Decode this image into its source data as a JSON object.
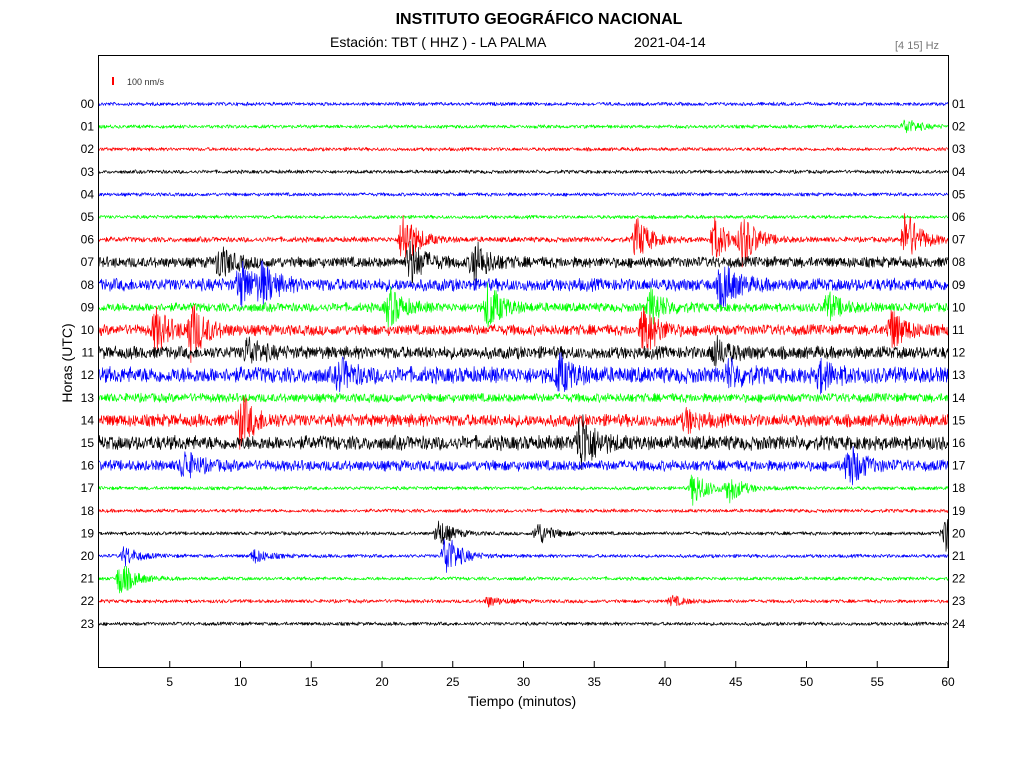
{
  "header": {
    "title": "INSTITUTO GEOGRÁFICO NACIONAL",
    "station": "Estación:  TBT ( HHZ ) - LA PALMA",
    "date": "2021-04-14",
    "band": "[4 15] Hz"
  },
  "scale": {
    "label": "100 nm/s",
    "color": "#ff0000"
  },
  "chart_data": {
    "type": "line",
    "title": "INSTITUTO GEOGRÁFICO NACIONAL",
    "xlabel": "Tiempo (minutos)",
    "ylabel": "Horas (UTC)",
    "xlim": [
      0,
      60
    ],
    "x_ticks": [
      5,
      10,
      15,
      20,
      25,
      30,
      35,
      40,
      45,
      50,
      55,
      60
    ],
    "trace_colors": [
      "#0000ff",
      "#00ff00",
      "#ff0000",
      "#000000"
    ],
    "left_labels": [
      "00",
      "01",
      "02",
      "03",
      "04",
      "05",
      "06",
      "07",
      "08",
      "09",
      "10",
      "11",
      "12",
      "13",
      "14",
      "15",
      "16",
      "17",
      "18",
      "19",
      "20",
      "21",
      "22",
      "23"
    ],
    "right_labels": [
      "01",
      "02",
      "03",
      "04",
      "05",
      "06",
      "07",
      "08",
      "09",
      "10",
      "11",
      "12",
      "13",
      "14",
      "15",
      "16",
      "17",
      "18",
      "19",
      "20",
      "21",
      "22",
      "23",
      "24"
    ],
    "noise_amplitude": [
      2,
      2,
      2,
      2,
      2,
      2,
      3,
      6,
      7,
      5,
      6,
      7,
      9,
      5,
      7,
      8,
      6,
      2,
      2,
      2,
      2,
      2,
      2,
      2
    ],
    "events": [
      {
        "hour": 1,
        "minute": 57,
        "amp": 8
      },
      {
        "hour": 6,
        "minute": 21.5,
        "amp": 30
      },
      {
        "hour": 6,
        "minute": 38,
        "amp": 22
      },
      {
        "hour": 6,
        "minute": 43.5,
        "amp": 22
      },
      {
        "hour": 6,
        "minute": 45.5,
        "amp": 26
      },
      {
        "hour": 6,
        "minute": 57,
        "amp": 30
      },
      {
        "hour": 7,
        "minute": 8.5,
        "amp": 16
      },
      {
        "hour": 7,
        "minute": 22,
        "amp": 22
      },
      {
        "hour": 7,
        "minute": 26.5,
        "amp": 22
      },
      {
        "hour": 8,
        "minute": 10,
        "amp": 22
      },
      {
        "hour": 8,
        "minute": 11.5,
        "amp": 18
      },
      {
        "hour": 8,
        "minute": 44,
        "amp": 24
      },
      {
        "hour": 9,
        "minute": 20.5,
        "amp": 20
      },
      {
        "hour": 9,
        "minute": 27.5,
        "amp": 24
      },
      {
        "hour": 9,
        "minute": 39,
        "amp": 18
      },
      {
        "hour": 9,
        "minute": 51.5,
        "amp": 14
      },
      {
        "hour": 10,
        "minute": 4,
        "amp": 22
      },
      {
        "hour": 10,
        "minute": 6.5,
        "amp": 28
      },
      {
        "hour": 10,
        "minute": 38.5,
        "amp": 26
      },
      {
        "hour": 10,
        "minute": 56,
        "amp": 20
      },
      {
        "hour": 11,
        "minute": 10.5,
        "amp": 14
      },
      {
        "hour": 11,
        "minute": 43.5,
        "amp": 14
      },
      {
        "hour": 12,
        "minute": 17,
        "amp": 14
      },
      {
        "hour": 12,
        "minute": 32.5,
        "amp": 18
      },
      {
        "hour": 12,
        "minute": 44.5,
        "amp": 12
      },
      {
        "hour": 12,
        "minute": 51,
        "amp": 14
      },
      {
        "hour": 14,
        "minute": 10,
        "amp": 26
      },
      {
        "hour": 14,
        "minute": 41.5,
        "amp": 10
      },
      {
        "hour": 15,
        "minute": 34,
        "amp": 32
      },
      {
        "hour": 16,
        "minute": 6,
        "amp": 14
      },
      {
        "hour": 16,
        "minute": 53,
        "amp": 22
      },
      {
        "hour": 17,
        "minute": 42,
        "amp": 18
      },
      {
        "hour": 17,
        "minute": 44.5,
        "amp": 14
      },
      {
        "hour": 19,
        "minute": 24,
        "amp": 14
      },
      {
        "hour": 19,
        "minute": 31,
        "amp": 12
      },
      {
        "hour": 19,
        "minute": 59.8,
        "amp": 18
      },
      {
        "hour": 20,
        "minute": 1.8,
        "amp": 10
      },
      {
        "hour": 20,
        "minute": 11,
        "amp": 7
      },
      {
        "hour": 20,
        "minute": 24.5,
        "amp": 24
      },
      {
        "hour": 21,
        "minute": 1.5,
        "amp": 18
      },
      {
        "hour": 22,
        "minute": 27.5,
        "amp": 5
      },
      {
        "hour": 22,
        "minute": 40.5,
        "amp": 5
      }
    ]
  }
}
